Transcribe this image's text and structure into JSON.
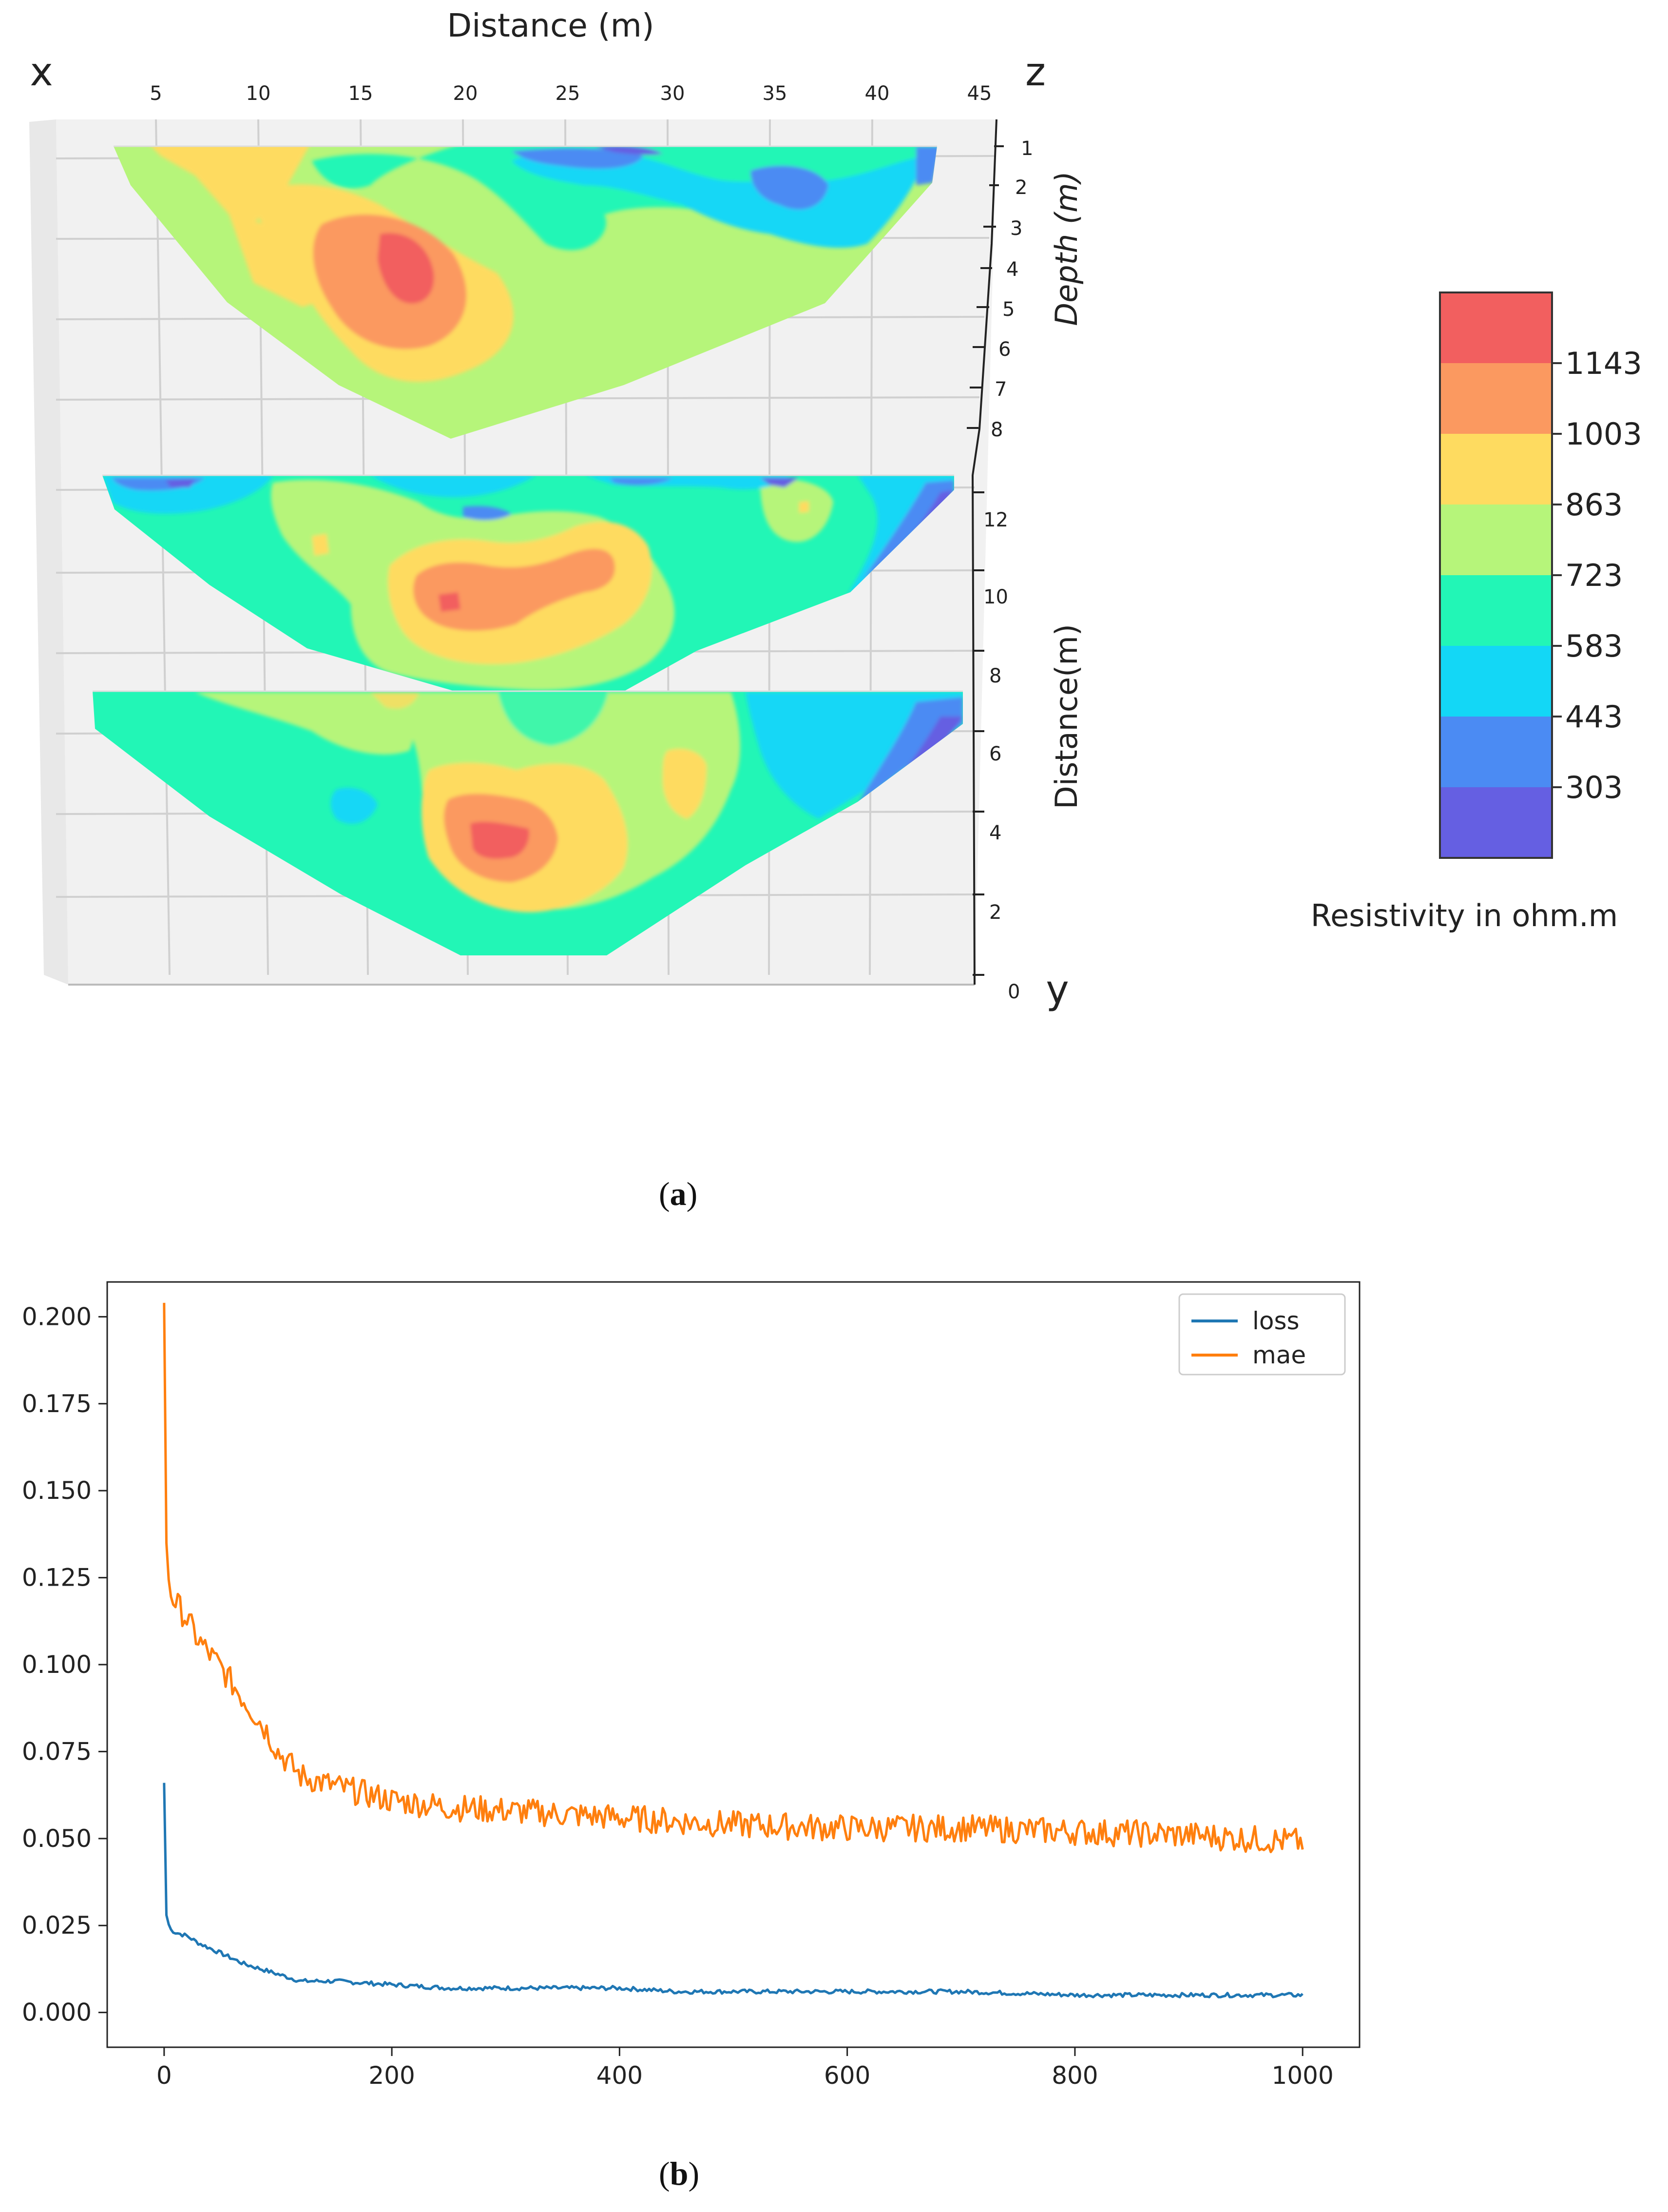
{
  "panel_a": {
    "caption_letter": "a",
    "x_title": "Distance (m)",
    "depth_title": "Depth (m)",
    "dist_title": "Distance(m)",
    "axis_x": "x",
    "axis_y": "y",
    "axis_z": "z",
    "x_ticks": [
      "5",
      "10",
      "15",
      "20",
      "25",
      "30",
      "35",
      "40",
      "45"
    ],
    "depth_ticks": [
      "1",
      "2",
      "3",
      "4",
      "5",
      "6",
      "7",
      "8"
    ],
    "y_ticks": [
      "12",
      "10",
      "8",
      "6",
      "4",
      "2",
      "0"
    ],
    "colorbar": {
      "title": "Resistivity in ohm.m",
      "levels": [
        "1143",
        "1003",
        "863",
        "723",
        "583",
        "443",
        "303"
      ],
      "colors": [
        "#f25f5f",
        "#fb9960",
        "#fedb60",
        "#b6f57a",
        "#22f6b6",
        "#13d7f6",
        "#4b8bf3",
        "#655fe2"
      ]
    }
  },
  "panel_b": {
    "caption_letter": "b"
  },
  "chart_data": [
    {
      "type": "contour-3d",
      "title": "",
      "xlabel": "Distance (m)",
      "zlabel": "Depth (m)",
      "ylabel": "Distance(m)",
      "x_range": [
        0,
        45
      ],
      "depth_range": [
        1,
        8
      ],
      "y_range": [
        0,
        13
      ],
      "slices_at_y": [
        0,
        6,
        12
      ],
      "colorbar_label": "Resistivity in ohm.m",
      "colorbar_levels": [
        303,
        443,
        583,
        723,
        863,
        1003,
        1143
      ]
    },
    {
      "type": "line",
      "title": "",
      "xlabel": "",
      "ylabel": "",
      "xlim": [
        -50,
        1050
      ],
      "ylim": [
        -0.01,
        0.21
      ],
      "x_ticks": [
        0,
        200,
        400,
        600,
        800,
        1000
      ],
      "y_ticks": [
        0.0,
        0.025,
        0.05,
        0.075,
        0.1,
        0.125,
        0.15,
        0.175,
        0.2
      ],
      "x_tick_labels": [
        "0",
        "200",
        "400",
        "600",
        "800",
        "1000"
      ],
      "y_tick_labels": [
        "0.000",
        "0.025",
        "0.050",
        "0.075",
        "0.100",
        "0.125",
        "0.150",
        "0.175",
        "0.200"
      ],
      "legend_position": "top-right",
      "series": [
        {
          "name": "loss",
          "color": "#1f77b4",
          "x": [
            0,
            2,
            5,
            10,
            20,
            30,
            50,
            70,
            90,
            100,
            120,
            150,
            200,
            250,
            300,
            350,
            400,
            450,
            500,
            600,
            700,
            800,
            900,
            1000
          ],
          "values": [
            0.066,
            0.028,
            0.024,
            0.023,
            0.022,
            0.02,
            0.017,
            0.014,
            0.012,
            0.011,
            0.009,
            0.009,
            0.008,
            0.007,
            0.007,
            0.007,
            0.007,
            0.006,
            0.006,
            0.006,
            0.006,
            0.005,
            0.005,
            0.005
          ]
        },
        {
          "name": "mae",
          "color": "#ff7f0e",
          "x": [
            0,
            2,
            5,
            10,
            20,
            30,
            50,
            70,
            90,
            100,
            120,
            150,
            200,
            250,
            300,
            350,
            400,
            450,
            500,
            600,
            700,
            800,
            900,
            1000
          ],
          "values": [
            0.204,
            0.135,
            0.121,
            0.118,
            0.113,
            0.107,
            0.099,
            0.09,
            0.081,
            0.075,
            0.068,
            0.065,
            0.061,
            0.059,
            0.058,
            0.057,
            0.056,
            0.055,
            0.054,
            0.053,
            0.053,
            0.052,
            0.051,
            0.049
          ]
        }
      ]
    }
  ]
}
